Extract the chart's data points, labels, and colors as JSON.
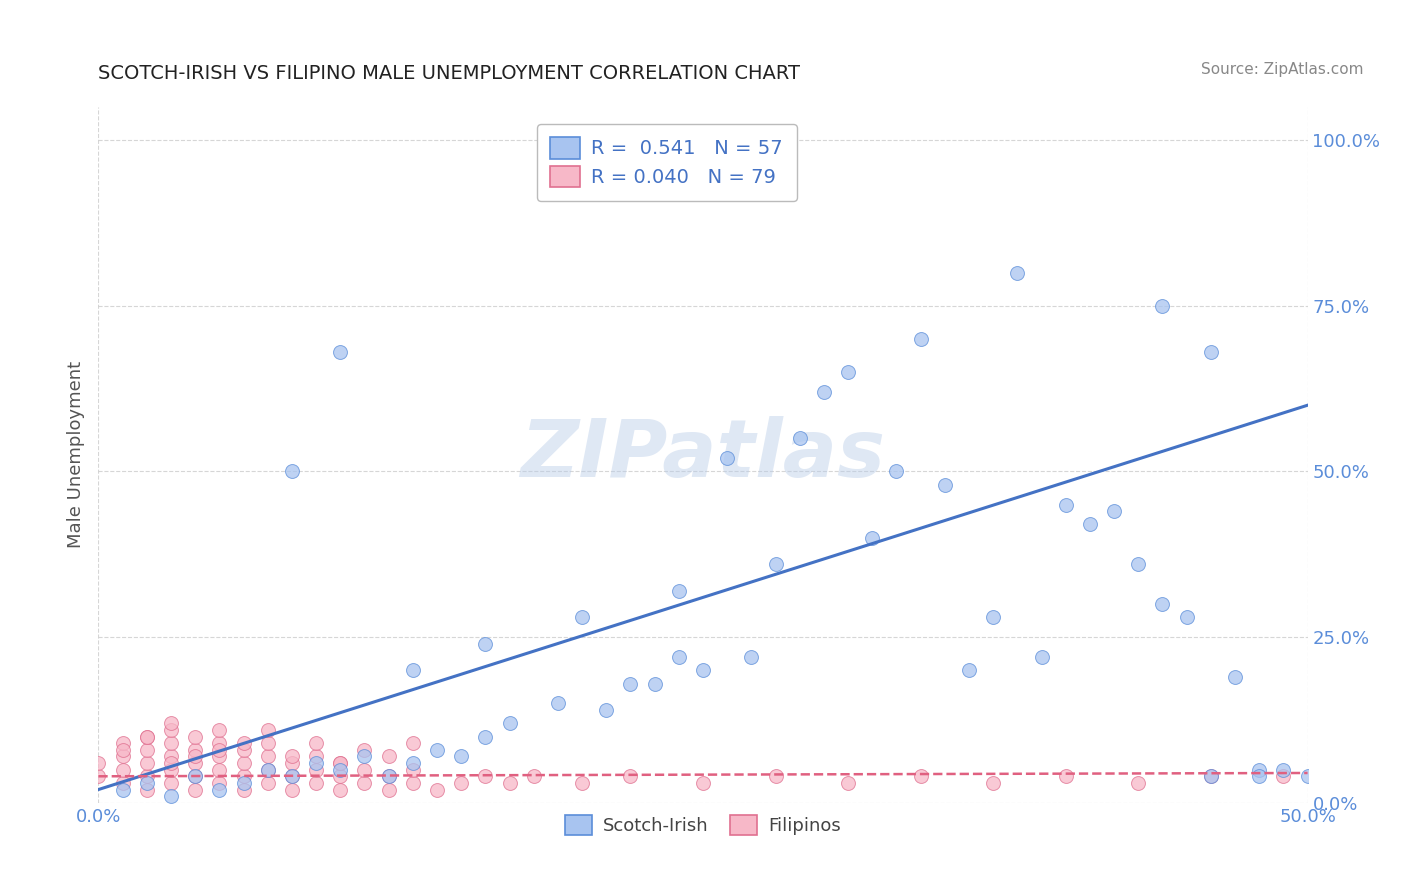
{
  "title": "SCOTCH-IRISH VS FILIPINO MALE UNEMPLOYMENT CORRELATION CHART",
  "source": "Source: ZipAtlas.com",
  "ylabel": "Male Unemployment",
  "xlim": [
    0.0,
    0.5
  ],
  "ylim": [
    0.0,
    1.05
  ],
  "xtick_values": [
    0.0,
    0.5
  ],
  "xtick_labels": [
    "0.0%",
    "50.0%"
  ],
  "ytick_values": [
    0.0,
    0.25,
    0.5,
    0.75,
    1.0
  ],
  "ytick_labels": [
    "0.0%",
    "25.0%",
    "50.0%",
    "75.0%",
    "100.0%"
  ],
  "scotch_irish_R": 0.541,
  "scotch_irish_N": 57,
  "filipino_R": 0.04,
  "filipino_N": 79,
  "scotch_irish_fill": "#a8c4f0",
  "scotch_irish_edge": "#5b8dd9",
  "filipino_fill": "#f7b8c8",
  "filipino_edge": "#e07090",
  "si_line_color": "#4472c4",
  "fil_line_color": "#e06080",
  "watermark": "ZIPatlas",
  "background_color": "#ffffff",
  "grid_color": "#cccccc",
  "tick_color": "#5b8dd9",
  "title_color": "#222222",
  "source_color": "#888888",
  "ylabel_color": "#555555",
  "si_scatter_x": [
    0.01,
    0.02,
    0.03,
    0.04,
    0.05,
    0.06,
    0.07,
    0.08,
    0.09,
    0.1,
    0.11,
    0.12,
    0.13,
    0.14,
    0.15,
    0.16,
    0.17,
    0.19,
    0.21,
    0.23,
    0.25,
    0.27,
    0.29,
    0.31,
    0.33,
    0.35,
    0.37,
    0.39,
    0.41,
    0.43,
    0.45,
    0.47,
    0.49,
    0.08,
    0.1,
    0.13,
    0.16,
    0.2,
    0.24,
    0.28,
    0.32,
    0.36,
    0.4,
    0.44,
    0.48,
    0.26,
    0.3,
    0.34,
    0.38,
    0.42,
    0.46,
    0.5,
    0.22,
    0.24,
    0.44,
    0.46,
    0.48
  ],
  "si_scatter_y": [
    0.02,
    0.03,
    0.01,
    0.04,
    0.02,
    0.03,
    0.05,
    0.04,
    0.06,
    0.05,
    0.07,
    0.04,
    0.06,
    0.08,
    0.07,
    0.1,
    0.12,
    0.15,
    0.14,
    0.18,
    0.2,
    0.22,
    0.55,
    0.65,
    0.5,
    0.48,
    0.28,
    0.22,
    0.42,
    0.36,
    0.28,
    0.19,
    0.05,
    0.5,
    0.68,
    0.2,
    0.24,
    0.28,
    0.32,
    0.36,
    0.4,
    0.2,
    0.45,
    0.3,
    0.05,
    0.52,
    0.62,
    0.7,
    0.8,
    0.44,
    0.04,
    0.04,
    0.18,
    0.22,
    0.75,
    0.68,
    0.04
  ],
  "fil_scatter_x": [
    0.0,
    0.0,
    0.01,
    0.01,
    0.01,
    0.01,
    0.02,
    0.02,
    0.02,
    0.02,
    0.02,
    0.03,
    0.03,
    0.03,
    0.03,
    0.03,
    0.04,
    0.04,
    0.04,
    0.04,
    0.05,
    0.05,
    0.05,
    0.05,
    0.05,
    0.06,
    0.06,
    0.06,
    0.06,
    0.07,
    0.07,
    0.07,
    0.07,
    0.08,
    0.08,
    0.08,
    0.09,
    0.09,
    0.09,
    0.1,
    0.1,
    0.1,
    0.11,
    0.11,
    0.12,
    0.12,
    0.13,
    0.13,
    0.14,
    0.15,
    0.16,
    0.17,
    0.18,
    0.2,
    0.22,
    0.25,
    0.28,
    0.31,
    0.34,
    0.37,
    0.4,
    0.43,
    0.46,
    0.49,
    0.03,
    0.04,
    0.05,
    0.06,
    0.07,
    0.08,
    0.09,
    0.1,
    0.11,
    0.12,
    0.13,
    0.01,
    0.02,
    0.03,
    0.04
  ],
  "fil_scatter_y": [
    0.04,
    0.06,
    0.03,
    0.05,
    0.07,
    0.09,
    0.02,
    0.04,
    0.06,
    0.08,
    0.1,
    0.03,
    0.05,
    0.07,
    0.09,
    0.11,
    0.02,
    0.04,
    0.06,
    0.08,
    0.03,
    0.05,
    0.07,
    0.09,
    0.11,
    0.02,
    0.04,
    0.06,
    0.08,
    0.03,
    0.05,
    0.07,
    0.09,
    0.02,
    0.04,
    0.06,
    0.03,
    0.05,
    0.07,
    0.02,
    0.04,
    0.06,
    0.03,
    0.05,
    0.02,
    0.04,
    0.03,
    0.05,
    0.02,
    0.03,
    0.04,
    0.03,
    0.04,
    0.03,
    0.04,
    0.03,
    0.04,
    0.03,
    0.04,
    0.03,
    0.04,
    0.03,
    0.04,
    0.04,
    0.12,
    0.1,
    0.08,
    0.09,
    0.11,
    0.07,
    0.09,
    0.06,
    0.08,
    0.07,
    0.09,
    0.08,
    0.1,
    0.06,
    0.07
  ],
  "si_line_x": [
    0.0,
    0.5
  ],
  "si_line_y": [
    0.02,
    0.6
  ],
  "fil_line_x": [
    0.0,
    0.5
  ],
  "fil_line_y": [
    0.04,
    0.045
  ]
}
